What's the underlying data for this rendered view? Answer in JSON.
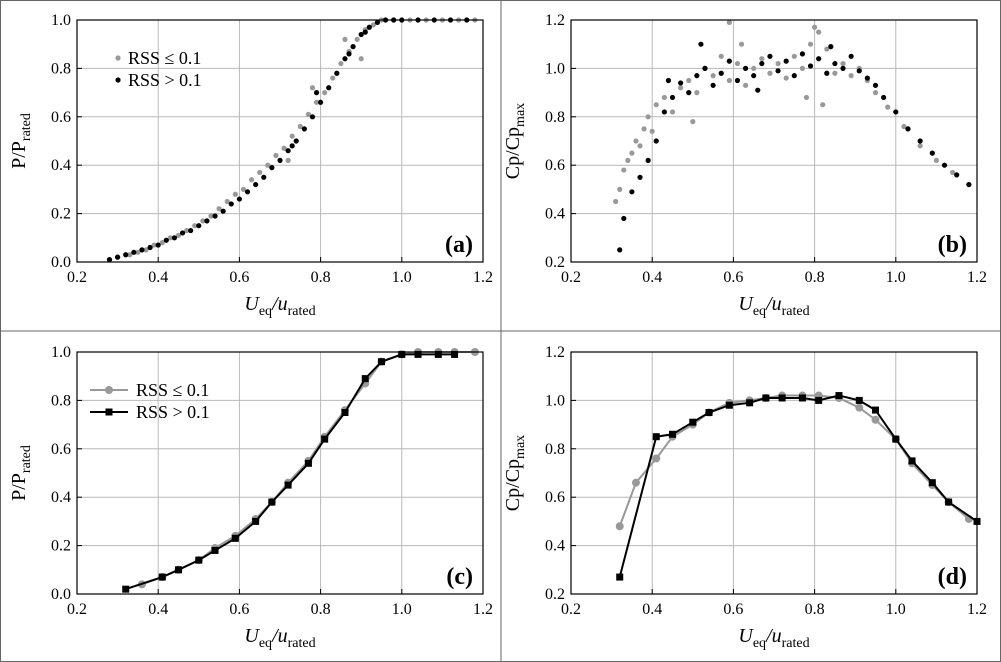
{
  "chart_data": [
    {
      "type": "scatter",
      "panel_label": "(a)",
      "xlabel": {
        "main": "U",
        "sub1": "eq",
        "sep": "/u",
        "sub2": "rated"
      },
      "ylabel": {
        "main": "P/P",
        "sub": "rated"
      },
      "xlim": [
        0.2,
        1.2
      ],
      "ylim": [
        0.0,
        1.0
      ],
      "xticks": [
        "0.2",
        "0.4",
        "0.6",
        "0.8",
        "1.0",
        "1.2"
      ],
      "yticks": [
        "0.0",
        "0.2",
        "0.4",
        "0.6",
        "0.8",
        "1.0"
      ],
      "grid": true,
      "legend_position": "top-left",
      "series": [
        {
          "name": "RSS ≤ 0.1",
          "color": "#999999",
          "marker": "dot",
          "x": [
            0.3,
            0.33,
            0.35,
            0.37,
            0.39,
            0.41,
            0.43,
            0.45,
            0.47,
            0.49,
            0.51,
            0.53,
            0.55,
            0.57,
            0.59,
            0.61,
            0.63,
            0.65,
            0.67,
            0.69,
            0.71,
            0.73,
            0.75,
            0.77,
            0.79,
            0.81,
            0.83,
            0.85,
            0.87,
            0.89,
            0.91,
            0.93,
            0.95,
            0.98,
            1.02,
            1.06,
            1.1,
            1.14,
            1.18,
            0.72,
            0.78,
            0.86,
            0.9
          ],
          "y": [
            0.02,
            0.03,
            0.04,
            0.05,
            0.07,
            0.08,
            0.1,
            0.11,
            0.13,
            0.15,
            0.17,
            0.19,
            0.22,
            0.25,
            0.28,
            0.3,
            0.34,
            0.37,
            0.4,
            0.44,
            0.47,
            0.52,
            0.56,
            0.61,
            0.66,
            0.7,
            0.76,
            0.82,
            0.87,
            0.92,
            0.96,
            0.98,
            1.0,
            1.0,
            1.0,
            1.0,
            1.0,
            1.0,
            1.0,
            0.42,
            0.72,
            0.92,
            0.84
          ]
        },
        {
          "name": "RSS > 0.1",
          "color": "#000000",
          "marker": "dot",
          "x": [
            0.28,
            0.3,
            0.32,
            0.34,
            0.36,
            0.38,
            0.4,
            0.42,
            0.44,
            0.46,
            0.48,
            0.5,
            0.52,
            0.54,
            0.56,
            0.58,
            0.6,
            0.62,
            0.64,
            0.66,
            0.68,
            0.7,
            0.72,
            0.74,
            0.76,
            0.78,
            0.8,
            0.82,
            0.84,
            0.86,
            0.88,
            0.9,
            0.92,
            0.94,
            0.96,
            0.98,
            1.0,
            1.04,
            1.08,
            1.12,
            1.16,
            0.73,
            0.79,
            0.87,
            0.91
          ],
          "y": [
            0.01,
            0.02,
            0.03,
            0.04,
            0.05,
            0.06,
            0.07,
            0.09,
            0.1,
            0.12,
            0.13,
            0.15,
            0.17,
            0.19,
            0.21,
            0.24,
            0.26,
            0.29,
            0.32,
            0.35,
            0.39,
            0.42,
            0.46,
            0.5,
            0.55,
            0.6,
            0.66,
            0.72,
            0.78,
            0.84,
            0.89,
            0.94,
            0.97,
            0.99,
            1.0,
            1.0,
            1.0,
            1.0,
            1.0,
            1.0,
            1.0,
            0.48,
            0.7,
            0.86,
            0.95
          ]
        }
      ]
    },
    {
      "type": "scatter",
      "panel_label": "(b)",
      "xlabel": {
        "main": "U",
        "sub1": "eq",
        "sep": "/u",
        "sub2": "rated"
      },
      "ylabel": {
        "main": "Cp/Cp",
        "sub": "max"
      },
      "xlim": [
        0.2,
        1.2
      ],
      "ylim": [
        0.2,
        1.2
      ],
      "xticks": [
        "0.2",
        "0.4",
        "0.6",
        "0.8",
        "1.0",
        "1.2"
      ],
      "yticks": [
        "0.2",
        "0.4",
        "0.6",
        "0.8",
        "1.0",
        "1.2"
      ],
      "grid": true,
      "series": [
        {
          "name": "RSS ≤ 0.1",
          "color": "#999999",
          "marker": "dot",
          "x": [
            0.31,
            0.32,
            0.33,
            0.34,
            0.35,
            0.36,
            0.37,
            0.38,
            0.39,
            0.4,
            0.41,
            0.43,
            0.45,
            0.47,
            0.49,
            0.51,
            0.53,
            0.55,
            0.57,
            0.59,
            0.61,
            0.63,
            0.65,
            0.67,
            0.69,
            0.71,
            0.73,
            0.75,
            0.77,
            0.79,
            0.81,
            0.83,
            0.85,
            0.87,
            0.89,
            0.91,
            0.93,
            0.95,
            0.98,
            1.02,
            1.06,
            1.1,
            1.14,
            1.18,
            0.59,
            0.8,
            0.82,
            0.5,
            0.62,
            0.78
          ],
          "y": [
            0.45,
            0.5,
            0.58,
            0.62,
            0.65,
            0.7,
            0.68,
            0.75,
            0.8,
            0.74,
            0.85,
            0.88,
            0.82,
            0.92,
            0.95,
            0.9,
            1.0,
            0.97,
            1.05,
            0.95,
            1.02,
            0.93,
            1.0,
            1.04,
            0.98,
            1.02,
            0.96,
            1.05,
            1.0,
            1.1,
            1.15,
            1.08,
            0.98,
            1.02,
            0.97,
            1.0,
            0.95,
            0.9,
            0.84,
            0.76,
            0.68,
            0.62,
            0.57,
            0.52,
            1.19,
            1.17,
            0.85,
            0.78,
            1.1,
            0.88
          ]
        },
        {
          "name": "RSS > 0.1",
          "color": "#000000",
          "marker": "dot",
          "x": [
            0.32,
            0.33,
            0.35,
            0.37,
            0.39,
            0.41,
            0.43,
            0.45,
            0.47,
            0.49,
            0.51,
            0.53,
            0.55,
            0.57,
            0.59,
            0.61,
            0.63,
            0.65,
            0.67,
            0.69,
            0.71,
            0.73,
            0.75,
            0.77,
            0.79,
            0.81,
            0.83,
            0.85,
            0.87,
            0.89,
            0.91,
            0.93,
            0.95,
            0.97,
            1.0,
            1.03,
            1.06,
            1.09,
            1.12,
            1.15,
            1.18,
            0.44,
            0.52,
            0.66,
            0.84
          ],
          "y": [
            0.25,
            0.38,
            0.49,
            0.55,
            0.62,
            0.7,
            0.82,
            0.88,
            0.94,
            0.9,
            0.97,
            1.0,
            0.93,
            0.98,
            1.03,
            0.95,
            1.0,
            0.97,
            1.02,
            1.05,
            0.99,
            1.03,
            0.97,
            1.06,
            1.01,
            1.04,
            0.98,
            1.02,
            1.0,
            1.05,
            0.99,
            0.96,
            0.93,
            0.88,
            0.82,
            0.75,
            0.7,
            0.65,
            0.6,
            0.56,
            0.52,
            0.95,
            1.1,
            0.91,
            1.09
          ]
        }
      ]
    },
    {
      "type": "line",
      "panel_label": "(c)",
      "xlabel": {
        "main": "U",
        "sub1": "eq",
        "sep": "/u",
        "sub2": "rated"
      },
      "ylabel": {
        "main": "P/P",
        "sub": "rated"
      },
      "xlim": [
        0.2,
        1.2
      ],
      "ylim": [
        0.0,
        1.0
      ],
      "xticks": [
        "0.2",
        "0.4",
        "0.6",
        "0.8",
        "1.0",
        "1.2"
      ],
      "yticks": [
        "0.0",
        "0.2",
        "0.4",
        "0.6",
        "0.8",
        "1.0"
      ],
      "grid": true,
      "legend_position": "top-left",
      "series": [
        {
          "name": "RSS ≤ 0.1",
          "color": "#999999",
          "marker": "circle",
          "x": [
            0.36,
            0.41,
            0.45,
            0.5,
            0.54,
            0.59,
            0.64,
            0.68,
            0.72,
            0.77,
            0.81,
            0.86,
            0.91,
            0.95,
            1.0,
            1.04,
            1.09,
            1.13,
            1.18
          ],
          "y": [
            0.04,
            0.07,
            0.1,
            0.14,
            0.19,
            0.24,
            0.31,
            0.38,
            0.46,
            0.55,
            0.65,
            0.76,
            0.87,
            0.96,
            0.99,
            1.0,
            1.0,
            1.0,
            1.0
          ]
        },
        {
          "name": "RSS > 0.1",
          "color": "#000000",
          "marker": "square",
          "x": [
            0.32,
            0.41,
            0.45,
            0.5,
            0.54,
            0.59,
            0.64,
            0.68,
            0.72,
            0.77,
            0.81,
            0.86,
            0.91,
            0.95,
            1.0,
            1.04,
            1.09,
            1.13
          ],
          "y": [
            0.02,
            0.07,
            0.1,
            0.14,
            0.18,
            0.23,
            0.3,
            0.38,
            0.45,
            0.54,
            0.64,
            0.75,
            0.89,
            0.96,
            0.99,
            0.99,
            0.99,
            0.99
          ]
        }
      ]
    },
    {
      "type": "line",
      "panel_label": "(d)",
      "xlabel": {
        "main": "U",
        "sub1": "eq",
        "sep": "/u",
        "sub2": "rated"
      },
      "ylabel": {
        "main": "Cp/Cp",
        "sub": "max"
      },
      "xlim": [
        0.2,
        1.2
      ],
      "ylim": [
        0.2,
        1.2
      ],
      "xticks": [
        "0.2",
        "0.4",
        "0.6",
        "0.8",
        "1.0",
        "1.2"
      ],
      "yticks": [
        "0.2",
        "0.4",
        "0.6",
        "0.8",
        "1.0",
        "1.2"
      ],
      "grid": true,
      "series": [
        {
          "name": "RSS ≤ 0.1",
          "color": "#999999",
          "marker": "circle",
          "x": [
            0.32,
            0.36,
            0.41,
            0.45,
            0.5,
            0.54,
            0.59,
            0.64,
            0.68,
            0.72,
            0.77,
            0.81,
            0.86,
            0.91,
            0.95,
            1.0,
            1.04,
            1.09,
            1.13,
            1.18
          ],
          "y": [
            0.48,
            0.66,
            0.76,
            0.85,
            0.9,
            0.95,
            0.99,
            1.0,
            1.01,
            1.02,
            1.02,
            1.02,
            1.01,
            0.97,
            0.92,
            0.84,
            0.74,
            0.65,
            0.58,
            0.51
          ]
        },
        {
          "name": "RSS > 0.1",
          "color": "#000000",
          "marker": "square",
          "x": [
            0.32,
            0.41,
            0.45,
            0.5,
            0.54,
            0.59,
            0.64,
            0.68,
            0.72,
            0.77,
            0.81,
            0.86,
            0.91,
            0.95,
            1.0,
            1.04,
            1.09,
            1.13,
            1.2
          ],
          "y": [
            0.27,
            0.85,
            0.86,
            0.91,
            0.95,
            0.98,
            0.99,
            1.01,
            1.01,
            1.01,
            1.0,
            1.02,
            1.0,
            0.96,
            0.84,
            0.75,
            0.66,
            0.58,
            0.5
          ]
        }
      ]
    }
  ]
}
